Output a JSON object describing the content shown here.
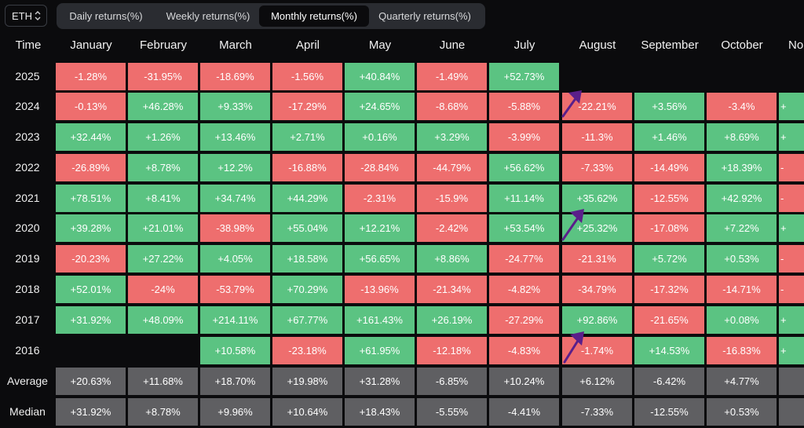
{
  "asset_selector": {
    "value": "ETH",
    "icon": "chevron-up-down-icon"
  },
  "tabs": [
    {
      "label": "Daily returns(%)",
      "active": false
    },
    {
      "label": "Weekly returns(%)",
      "active": false
    },
    {
      "label": "Monthly returns(%)",
      "active": true
    },
    {
      "label": "Quarterly returns(%)",
      "active": false
    }
  ],
  "table": {
    "corner_label": "Time",
    "months": [
      "January",
      "February",
      "March",
      "April",
      "May",
      "June",
      "July",
      "August",
      "September",
      "October",
      "No"
    ],
    "rows": [
      {
        "year": "2025",
        "values": [
          "-1.28%",
          "-31.95%",
          "-18.69%",
          "-1.56%",
          "+40.84%",
          "-1.49%",
          "+52.73%",
          "",
          "",
          "",
          ""
        ]
      },
      {
        "year": "2024",
        "values": [
          "-0.13%",
          "+46.28%",
          "+9.33%",
          "-17.29%",
          "+24.65%",
          "-8.68%",
          "-5.88%",
          "-22.21%",
          "+3.56%",
          "-3.4%",
          "+"
        ]
      },
      {
        "year": "2023",
        "values": [
          "+32.44%",
          "+1.26%",
          "+13.46%",
          "+2.71%",
          "+0.16%",
          "+3.29%",
          "-3.99%",
          "-11.3%",
          "+1.46%",
          "+8.69%",
          "+"
        ]
      },
      {
        "year": "2022",
        "values": [
          "-26.89%",
          "+8.78%",
          "+12.2%",
          "-16.88%",
          "-28.84%",
          "-44.79%",
          "+56.62%",
          "-7.33%",
          "-14.49%",
          "+18.39%",
          "-"
        ]
      },
      {
        "year": "2021",
        "values": [
          "+78.51%",
          "+8.41%",
          "+34.74%",
          "+44.29%",
          "-2.31%",
          "-15.9%",
          "+11.14%",
          "+35.62%",
          "-12.55%",
          "+42.92%",
          "-"
        ]
      },
      {
        "year": "2020",
        "values": [
          "+39.28%",
          "+21.01%",
          "-38.98%",
          "+55.04%",
          "+12.21%",
          "-2.42%",
          "+53.54%",
          "+25.32%",
          "-17.08%",
          "+7.22%",
          "+"
        ]
      },
      {
        "year": "2019",
        "values": [
          "-20.23%",
          "+27.22%",
          "+4.05%",
          "+18.58%",
          "+56.65%",
          "+8.86%",
          "-24.77%",
          "-21.31%",
          "+5.72%",
          "+0.53%",
          "-"
        ]
      },
      {
        "year": "2018",
        "values": [
          "+52.01%",
          "-24%",
          "-53.79%",
          "+70.29%",
          "-13.96%",
          "-21.34%",
          "-4.82%",
          "-34.79%",
          "-17.32%",
          "-14.71%",
          "-"
        ]
      },
      {
        "year": "2017",
        "values": [
          "+31.92%",
          "+48.09%",
          "+214.11%",
          "+67.77%",
          "+161.43%",
          "+26.19%",
          "-27.29%",
          "+92.86%",
          "-21.65%",
          "+0.08%",
          "+"
        ]
      },
      {
        "year": "2016",
        "values": [
          "",
          "",
          "+10.58%",
          "-23.18%",
          "+61.95%",
          "-12.18%",
          "-4.83%",
          "-1.74%",
          "+14.53%",
          "-16.83%",
          "+"
        ]
      }
    ],
    "average": {
      "label": "Average",
      "values": [
        "+20.63%",
        "+11.68%",
        "+18.70%",
        "+19.98%",
        "+31.28%",
        "-6.85%",
        "+10.24%",
        "+6.12%",
        "-6.42%",
        "+4.77%",
        ""
      ]
    },
    "median": {
      "label": "Median",
      "values": [
        "+31.92%",
        "+8.78%",
        "+9.96%",
        "+10.64%",
        "+18.43%",
        "-5.55%",
        "-4.41%",
        "-7.33%",
        "-12.55%",
        "+0.53%",
        ""
      ]
    }
  },
  "annotations": {
    "arrow_color": "#5a1f8a",
    "arrow_count": 3
  },
  "colors": {
    "positive": "#5bc382",
    "negative": "#ee6e6e",
    "stat": "#5f5f62",
    "background": "#0b0b0d"
  }
}
